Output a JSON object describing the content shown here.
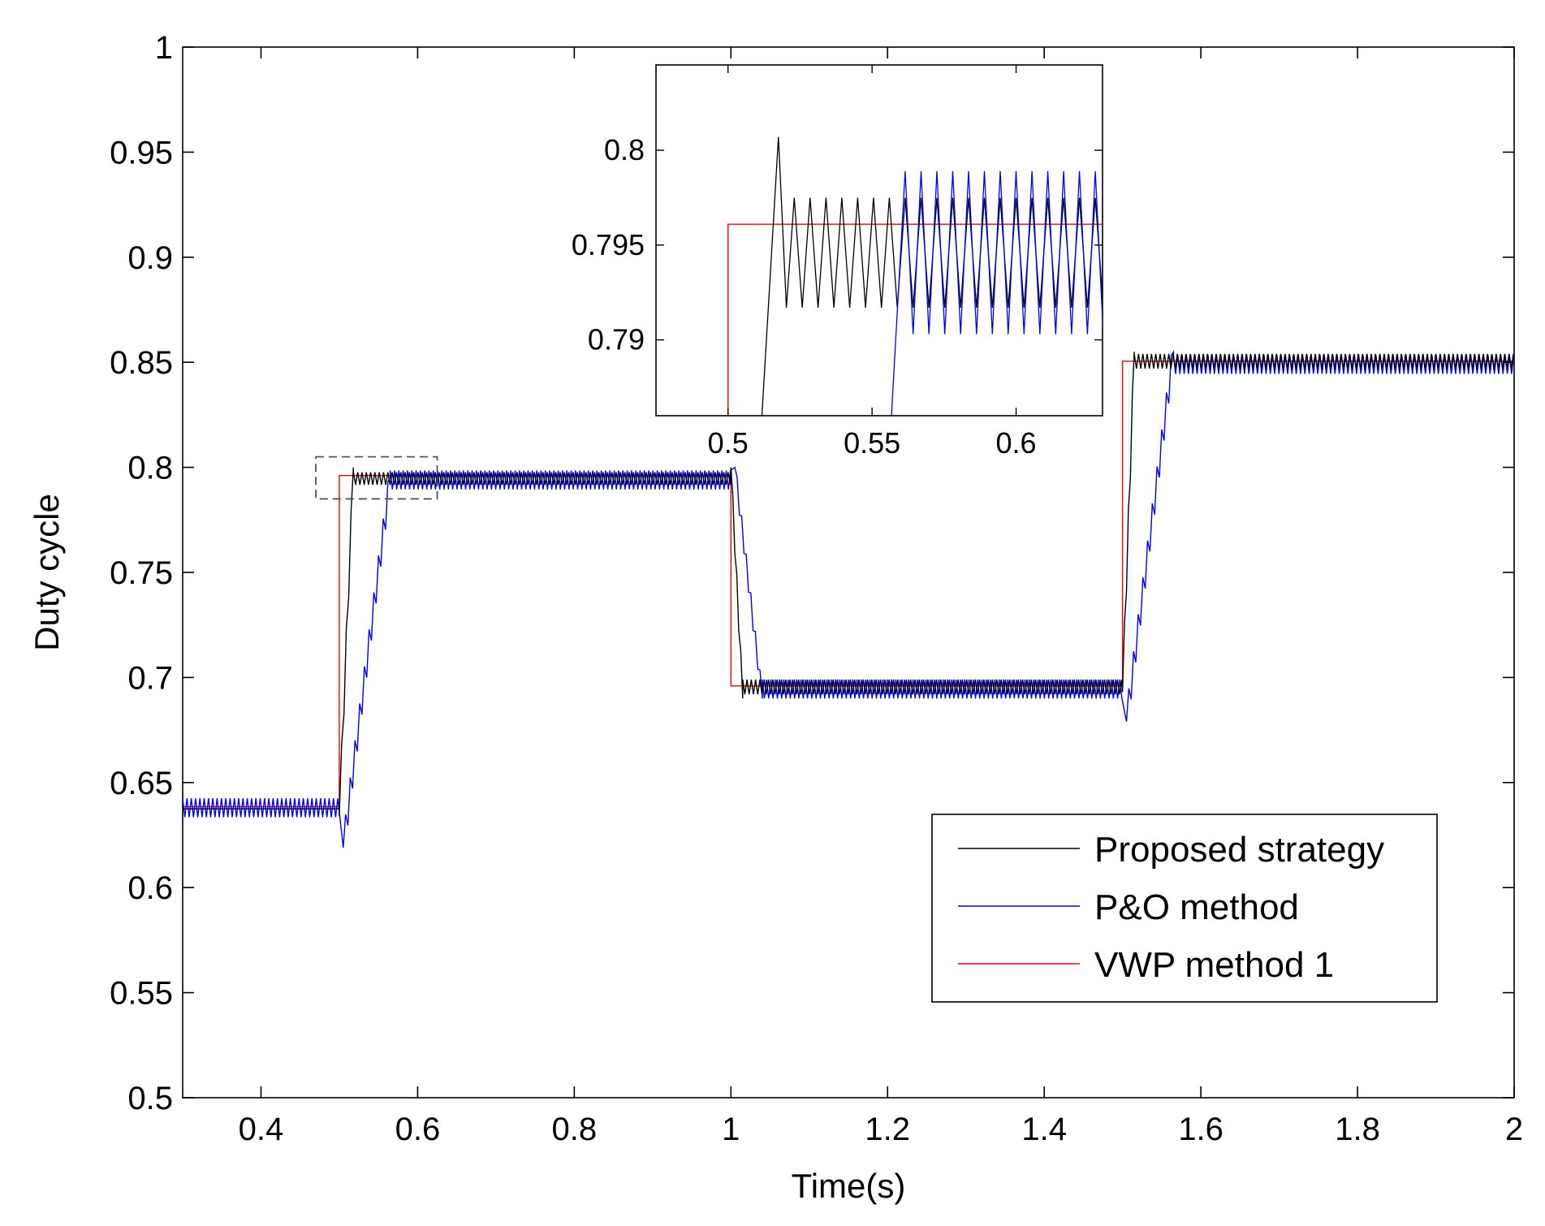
{
  "chart_data": [
    {
      "id": "main",
      "type": "line",
      "title": "",
      "xlabel": "Time(s)",
      "ylabel": "Duty cycle",
      "xlim": [
        0.3,
        2.0
      ],
      "ylim": [
        0.5,
        1.0
      ],
      "xticks": [
        0.4,
        0.6,
        0.8,
        1.0,
        1.2,
        1.4,
        1.6,
        1.8,
        2.0
      ],
      "xtick_labels": [
        "0.4",
        "0.6",
        "0.8",
        "1",
        "1.2",
        "1.4",
        "1.6",
        "1.8",
        "2"
      ],
      "yticks": [
        0.5,
        0.55,
        0.6,
        0.65,
        0.7,
        0.75,
        0.8,
        0.85,
        0.9,
        0.95,
        1.0
      ],
      "ytick_labels": [
        "0.5",
        "0.55",
        "0.6",
        "0.65",
        "0.7",
        "0.75",
        "0.8",
        "0.85",
        "0.9",
        "0.95",
        "1"
      ],
      "grid": false,
      "legend_position": "bottom-right",
      "zoom_region": {
        "x": [
          0.47,
          0.625
        ],
        "y": [
          0.785,
          0.805
        ]
      },
      "series": [
        {
          "name": "Proposed strategy",
          "color": "#000000",
          "levels": [
            {
              "from": 0.3,
              "to": 0.5,
              "value": 0.6375,
              "ripple": 0.0
            },
            {
              "from": 0.5,
              "to": 1.0,
              "value": 0.7947,
              "ripple": 0.003
            },
            {
              "from": 1.0,
              "to": 1.5,
              "value": 0.6955,
              "ripple": 0.0035
            },
            {
              "from": 1.5,
              "to": 2.0,
              "value": 0.8505,
              "ripple": 0.0035
            }
          ],
          "transitions": [
            {
              "at": 0.5,
              "pre_dip": 0.634,
              "overshoot": 0.8,
              "duration": 0.018
            },
            {
              "at": 1.0,
              "pre_dip": 0.8,
              "overshoot": 0.69,
              "duration": 0.015
            },
            {
              "at": 1.5,
              "pre_dip": 0.693,
              "overshoot": 0.855,
              "duration": 0.015
            }
          ]
        },
        {
          "name": "P&O method",
          "color": "#0000ff",
          "levels": [
            {
              "from": 0.3,
              "to": 0.5,
              "value": 0.638,
              "ripple": 0.0045
            },
            {
              "from": 0.5,
              "to": 1.0,
              "value": 0.794,
              "ripple": 0.0045
            },
            {
              "from": 1.0,
              "to": 1.5,
              "value": 0.6945,
              "ripple": 0.0045
            },
            {
              "from": 1.5,
              "to": 2.0,
              "value": 0.849,
              "ripple": 0.0045
            }
          ],
          "transitions": [
            {
              "at": 0.505,
              "pre_dip": 0.619,
              "overshoot": 0.795,
              "duration": 0.06
            },
            {
              "at": 1.005,
              "pre_dip": 0.8,
              "overshoot": 0.69,
              "duration": 0.035
            },
            {
              "at": 1.505,
              "pre_dip": 0.679,
              "overshoot": 0.855,
              "duration": 0.06
            }
          ]
        },
        {
          "name": "VWP method 1",
          "color": "#ff0000",
          "levels": [
            {
              "from": 0.3,
              "to": 0.5,
              "value": 0.6385,
              "ripple": 0.0
            },
            {
              "from": 0.5,
              "to": 1.0,
              "value": 0.7961,
              "ripple": 0.0
            },
            {
              "from": 1.0,
              "to": 1.5,
              "value": 0.696,
              "ripple": 0.0
            },
            {
              "from": 1.5,
              "to": 2.0,
              "value": 0.8505,
              "ripple": 0.0
            }
          ],
          "transitions": []
        }
      ]
    },
    {
      "id": "inset",
      "type": "line",
      "title": "",
      "xlim": [
        0.475,
        0.63
      ],
      "ylim": [
        0.786,
        0.8045
      ],
      "xticks": [
        0.5,
        0.55,
        0.6
      ],
      "xtick_labels": [
        "0.5",
        "0.55",
        "0.6"
      ],
      "yticks": [
        0.79,
        0.795,
        0.8
      ],
      "ytick_labels": [
        "0.79",
        "0.795",
        "0.8"
      ],
      "series": [
        {
          "name": "VWP method 1",
          "color": "#ff0000",
          "step_at": 0.5,
          "before": 0.6385,
          "after": 0.7961
        },
        {
          "name": "Proposed strategy",
          "color": "#000000",
          "rise_from": 0.511,
          "peak_at": 0.5175,
          "peak": 0.8007,
          "high": 0.7975,
          "low": 0.7917,
          "period": 0.0055
        },
        {
          "name": "P&O method",
          "color": "#0000ff",
          "rise_from": 0.556,
          "top_at": 0.5615,
          "high": 0.7989,
          "low": 0.7903,
          "period": 0.0055
        }
      ]
    }
  ]
}
